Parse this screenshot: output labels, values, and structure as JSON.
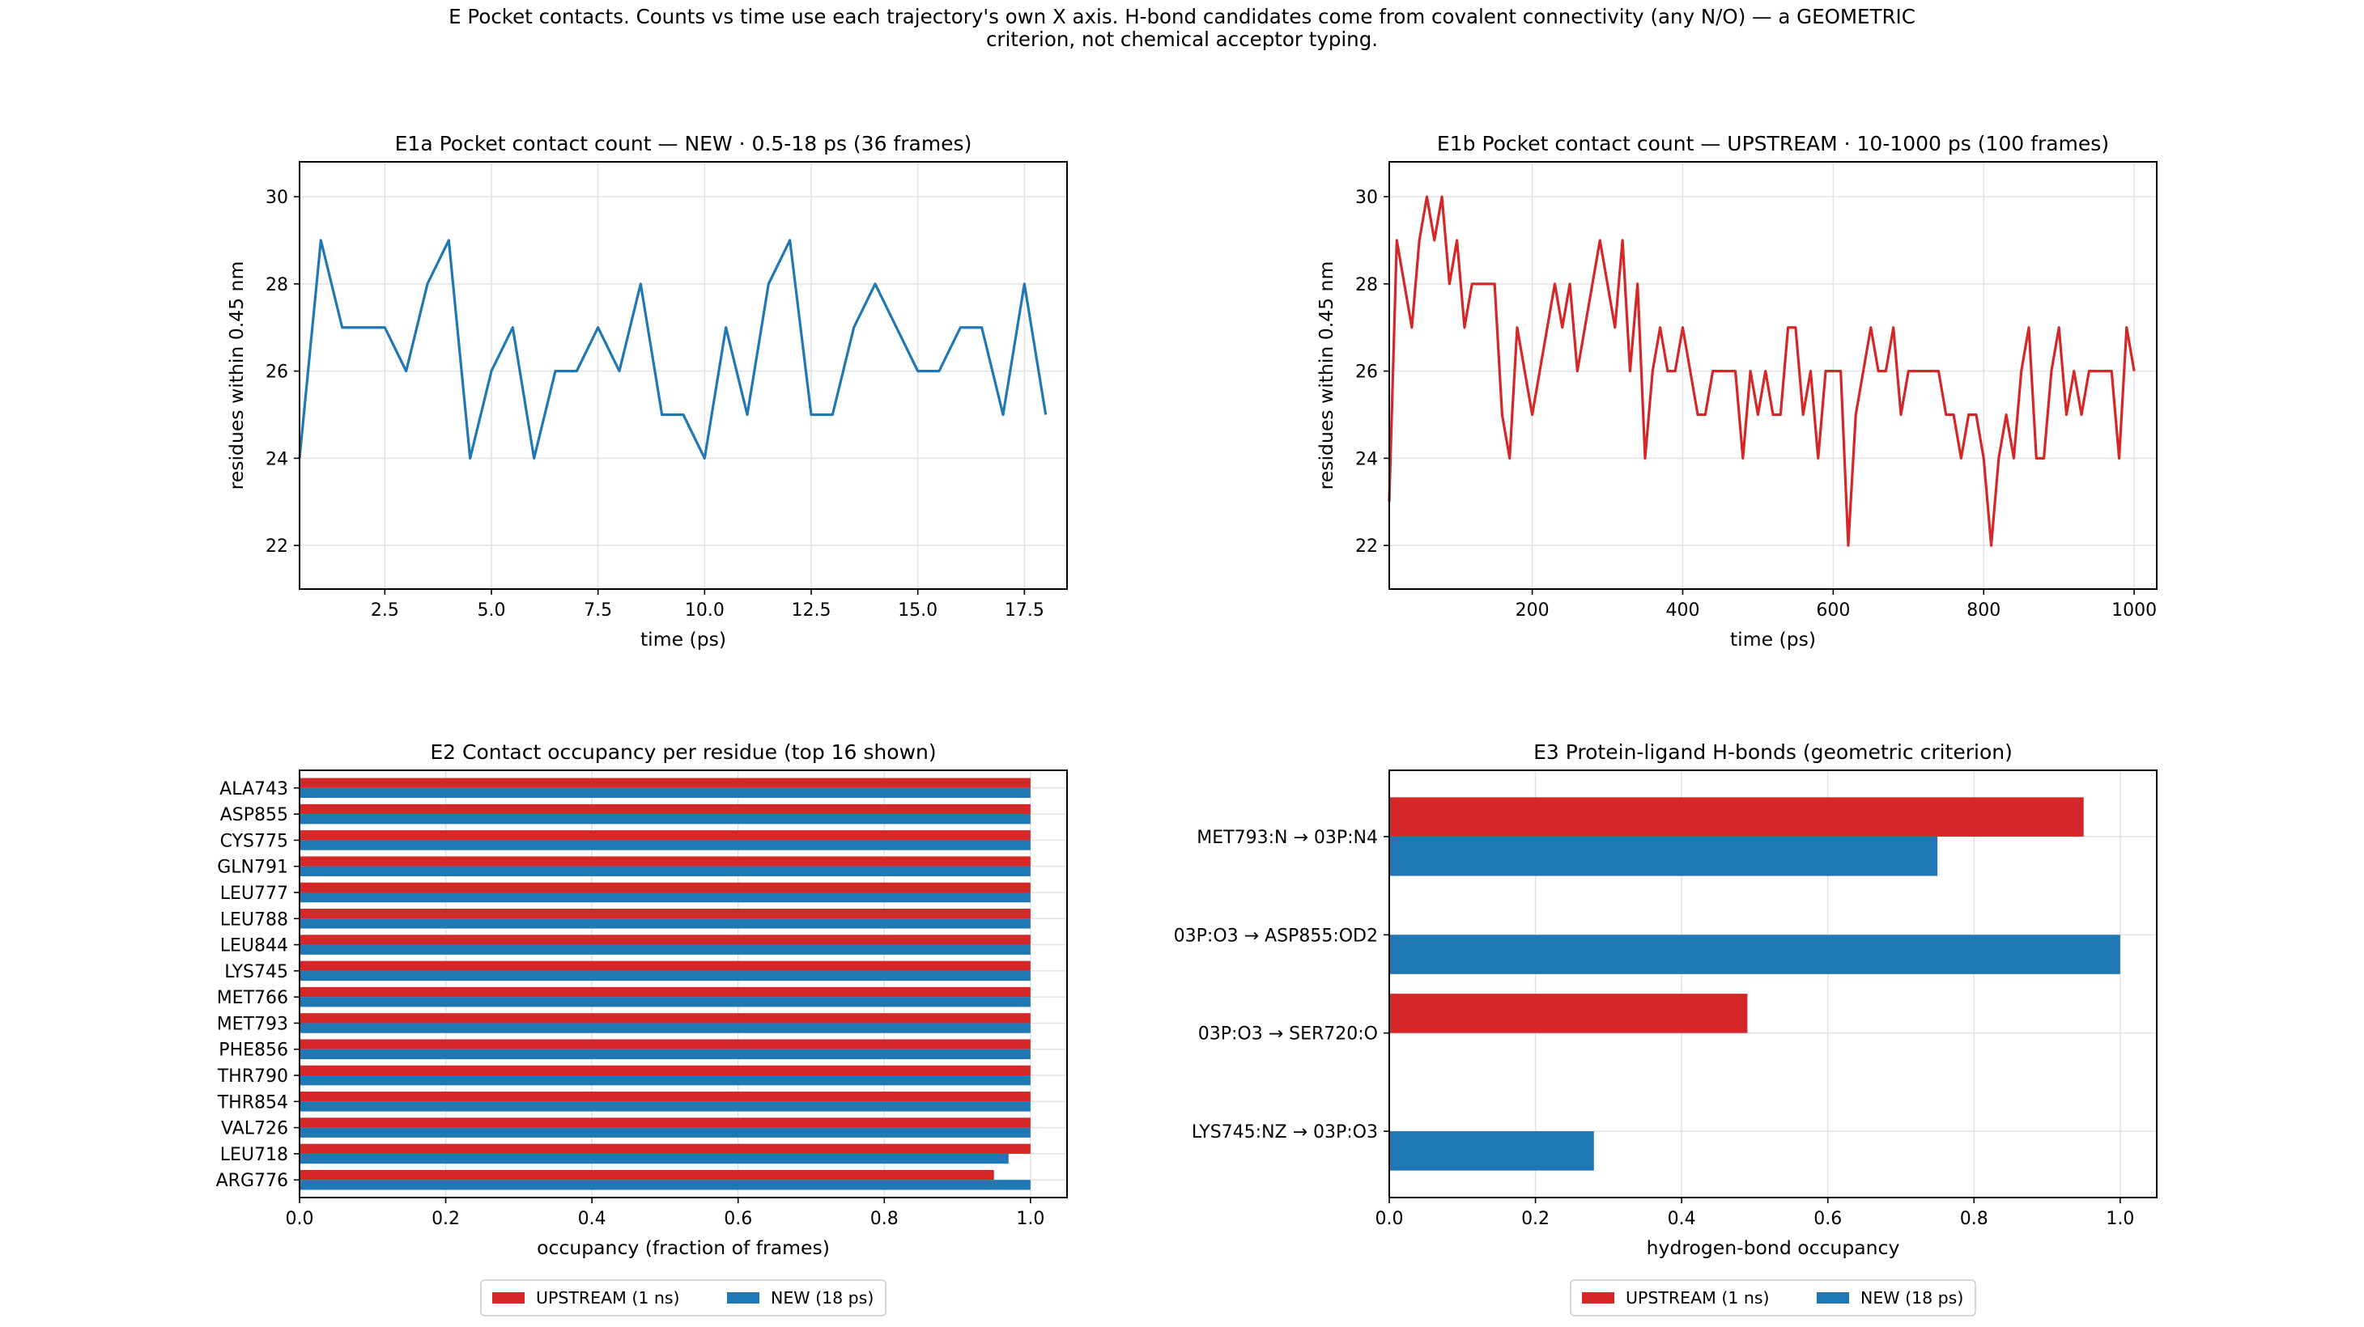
{
  "figure": {
    "suptitle_line1": "E  Pocket contacts. Counts vs time use each trajectory's own X axis. H-bond candidates come from covalent connectivity (any N/O) — a GEOMETRIC",
    "suptitle_line2": "criterion, not chemical acceptor typing."
  },
  "colors": {
    "upstream": "#d62728",
    "new": "#1f77b4",
    "grid": "#e3e3e3",
    "axis": "#000000"
  },
  "legends": {
    "e2": [
      {
        "label": "UPSTREAM (1 ns)",
        "color": "#d62728"
      },
      {
        "label": "NEW (18 ps)",
        "color": "#1f77b4"
      }
    ],
    "e3": [
      {
        "label": "UPSTREAM (1 ns)",
        "color": "#d62728"
      },
      {
        "label": "NEW (18 ps)",
        "color": "#1f77b4"
      }
    ]
  },
  "chart_data": [
    {
      "id": "e1a",
      "type": "line",
      "title": "E1a  Pocket contact count — NEW · 0.5-18 ps (36 frames)",
      "xlabel": "time (ps)",
      "ylabel": "residues within 0.45 nm",
      "xlim": [
        0.5,
        18.5
      ],
      "ylim": [
        21,
        30.8
      ],
      "xticks": [
        2.5,
        5.0,
        7.5,
        10.0,
        12.5,
        15.0,
        17.5
      ],
      "xtick_labels": [
        "2.5",
        "5.0",
        "7.5",
        "10.0",
        "12.5",
        "15.0",
        "17.5"
      ],
      "yticks": [
        22,
        24,
        26,
        28,
        30
      ],
      "ytick_labels": [
        "22",
        "24",
        "26",
        "28",
        "30"
      ],
      "grid": true,
      "series": [
        {
          "color": "#1f77b4",
          "x": [
            0.5,
            1.0,
            1.5,
            2.0,
            2.5,
            3.0,
            3.5,
            4.0,
            4.5,
            5.0,
            5.5,
            6.0,
            6.5,
            7.0,
            7.5,
            8.0,
            8.5,
            9.0,
            9.5,
            10.0,
            10.5,
            11.0,
            11.5,
            12.0,
            12.5,
            13.0,
            13.5,
            14.0,
            14.5,
            15.0,
            15.5,
            16.0,
            16.5,
            17.0,
            17.5,
            18.0
          ],
          "y": [
            24,
            29,
            27,
            27,
            27,
            26,
            28,
            29,
            24,
            26,
            27,
            24,
            26,
            26,
            27,
            26,
            28,
            25,
            25,
            24,
            27,
            25,
            28,
            29,
            25,
            25,
            27,
            28,
            27,
            26,
            26,
            27,
            27,
            25,
            28,
            25
          ]
        }
      ]
    },
    {
      "id": "e1b",
      "type": "line",
      "title": "E1b  Pocket contact count — UPSTREAM · 10-1000 ps (100 frames)",
      "xlabel": "time (ps)",
      "ylabel": "residues within 0.45 nm",
      "xlim": [
        10,
        1030
      ],
      "ylim": [
        21,
        30.8
      ],
      "xticks": [
        200,
        400,
        600,
        800,
        1000
      ],
      "xtick_labels": [
        "200",
        "400",
        "600",
        "800",
        "1000"
      ],
      "yticks": [
        22,
        24,
        26,
        28,
        30
      ],
      "ytick_labels": [
        "22",
        "24",
        "26",
        "28",
        "30"
      ],
      "grid": true,
      "series": [
        {
          "color": "#d62728",
          "x": [
            10,
            20,
            30,
            40,
            50,
            60,
            70,
            80,
            90,
            100,
            110,
            120,
            130,
            140,
            150,
            160,
            170,
            180,
            190,
            200,
            210,
            220,
            230,
            240,
            250,
            260,
            270,
            280,
            290,
            300,
            310,
            320,
            330,
            340,
            350,
            360,
            370,
            380,
            390,
            400,
            410,
            420,
            430,
            440,
            450,
            460,
            470,
            480,
            490,
            500,
            510,
            520,
            530,
            540,
            550,
            560,
            570,
            580,
            590,
            600,
            610,
            620,
            630,
            640,
            650,
            660,
            670,
            680,
            690,
            700,
            710,
            720,
            730,
            740,
            750,
            760,
            770,
            780,
            790,
            800,
            810,
            820,
            830,
            840,
            850,
            860,
            870,
            880,
            890,
            900,
            910,
            920,
            930,
            940,
            950,
            960,
            970,
            980,
            990,
            1000
          ],
          "y": [
            23,
            29,
            28,
            27,
            29,
            30,
            29,
            30,
            28,
            29,
            27,
            28,
            28,
            28,
            28,
            25,
            24,
            27,
            26,
            25,
            26,
            27,
            28,
            27,
            28,
            26,
            27,
            28,
            29,
            28,
            27,
            29,
            26,
            28,
            24,
            26,
            27,
            26,
            26,
            27,
            26,
            25,
            25,
            26,
            26,
            26,
            26,
            24,
            26,
            25,
            26,
            25,
            25,
            27,
            27,
            25,
            26,
            24,
            26,
            26,
            26,
            22,
            25,
            26,
            27,
            26,
            26,
            27,
            25,
            26,
            26,
            26,
            26,
            26,
            25,
            25,
            24,
            25,
            25,
            24,
            22,
            24,
            25,
            24,
            26,
            27,
            24,
            24,
            26,
            27,
            25,
            26,
            25,
            26,
            26,
            26,
            26,
            24,
            27,
            26
          ]
        }
      ]
    },
    {
      "id": "e2",
      "type": "bar",
      "orientation": "horizontal",
      "title": "E2  Contact occupancy per residue (top 16 shown)",
      "xlabel": "occupancy (fraction of frames)",
      "ylabel": "",
      "xlim": [
        0,
        1.05
      ],
      "xticks": [
        0.0,
        0.2,
        0.4,
        0.6,
        0.8,
        1.0
      ],
      "xtick_labels": [
        "0.0",
        "0.2",
        "0.4",
        "0.6",
        "0.8",
        "1.0"
      ],
      "grid": true,
      "categories": [
        "ALA743",
        "ASP855",
        "CYS775",
        "GLN791",
        "LEU777",
        "LEU788",
        "LEU844",
        "LYS745",
        "MET766",
        "MET793",
        "PHE856",
        "THR790",
        "THR854",
        "VAL726",
        "LEU718",
        "ARG776"
      ],
      "series": [
        {
          "name": "UPSTREAM (1 ns)",
          "color": "#d62728",
          "values": [
            1,
            1,
            1,
            1,
            1,
            1,
            1,
            1,
            1,
            1,
            1,
            1,
            1,
            1,
            1,
            0.95
          ]
        },
        {
          "name": "NEW (18 ps)",
          "color": "#1f77b4",
          "values": [
            1,
            1,
            1,
            1,
            1,
            1,
            1,
            1,
            1,
            1,
            1,
            1,
            1,
            1,
            0.97,
            1
          ]
        }
      ],
      "legend": "below"
    },
    {
      "id": "e3",
      "type": "bar",
      "orientation": "horizontal",
      "title": "E3  Protein-ligand H-bonds (geometric criterion)",
      "xlabel": "hydrogen-bond occupancy",
      "ylabel": "",
      "xlim": [
        0,
        1.05
      ],
      "xticks": [
        0.0,
        0.2,
        0.4,
        0.6,
        0.8,
        1.0
      ],
      "xtick_labels": [
        "0.0",
        "0.2",
        "0.4",
        "0.6",
        "0.8",
        "1.0"
      ],
      "grid": true,
      "categories": [
        "MET793:N → 03P:N4",
        "03P:O3 → ASP855:OD2",
        "03P:O3 → SER720:O",
        "LYS745:NZ → 03P:O3"
      ],
      "series": [
        {
          "name": "UPSTREAM (1 ns)",
          "color": "#d62728",
          "values": [
            0.95,
            0,
            0.49,
            0
          ]
        },
        {
          "name": "NEW (18 ps)",
          "color": "#1f77b4",
          "values": [
            0.75,
            1.0,
            0,
            0.28
          ]
        }
      ],
      "legend": "below"
    }
  ]
}
